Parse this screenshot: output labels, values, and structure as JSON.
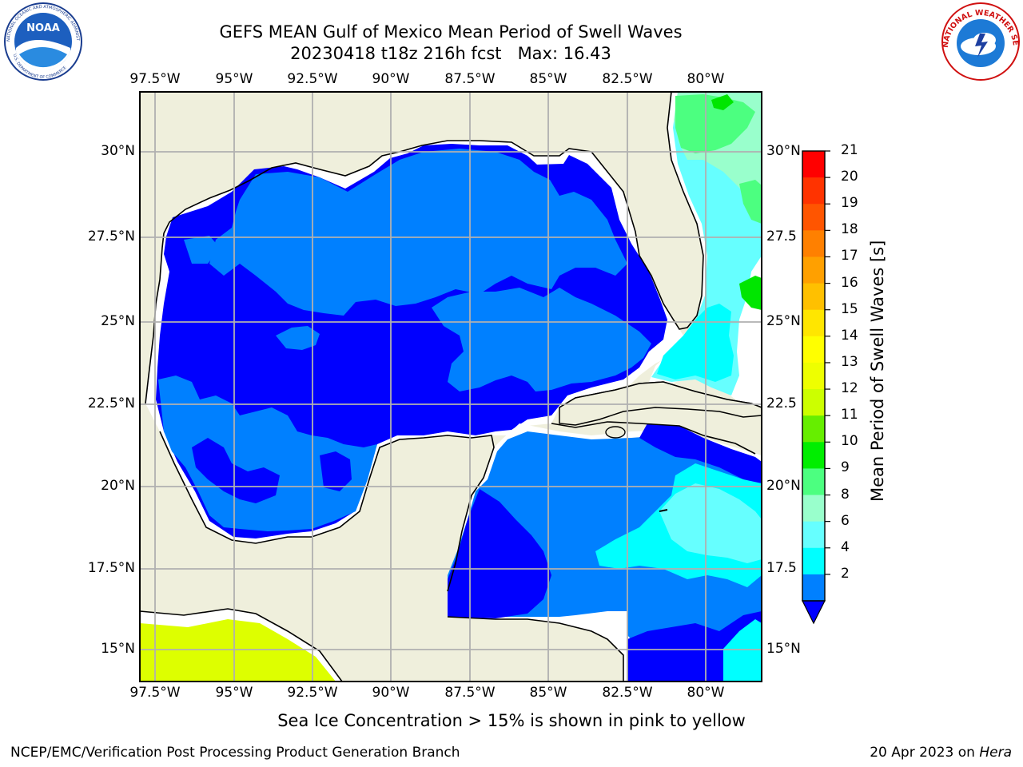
{
  "header": {
    "title_line1": "GEFS MEAN Gulf of Mexico Mean Period of Swell Waves",
    "title_line2": "20230418 t18z 216h fcst   Max: 16.43"
  },
  "logos": {
    "noaa": "NOAA",
    "noaa_ring": "NATIONAL OCEANIC AND ATMOSPHERIC ADMINISTRATION",
    "noaa_ring_bottom": "U.S. DEPARTMENT OF COMMERCE",
    "nws_ring": "NATIONAL WEATHER SERVICE"
  },
  "map": {
    "lon_ticks": [
      "97.5°W",
      "95°W",
      "92.5°W",
      "90°W",
      "87.5°W",
      "85°W",
      "82.5°W",
      "80°W"
    ],
    "lat_ticks": [
      "30°N",
      "27.5°N",
      "25°N",
      "22.5°N",
      "20°N",
      "17.5°N",
      "15°N"
    ],
    "lat_ticks_right": [
      "30°N",
      "27.5",
      "25°N",
      "22.5",
      "20°N",
      "17.5",
      "15°N"
    ],
    "lon_range": [
      -98,
      -78.2
    ],
    "lat_range": [
      14,
      31.8
    ],
    "colors": {
      "land": "#efefdc",
      "level_2": "#0000ff",
      "level_4": "#0080ff",
      "level_6": "#00ffff",
      "level_8": "#66ffff",
      "level_9": "#99ffcc",
      "level_10": "#4cff80",
      "level_11": "#00e600",
      "level_13": "#ddff00",
      "no_data": "#ffffff"
    }
  },
  "colorbar": {
    "label": "Mean Period of Swell Waves [s]",
    "ticks": [
      "21",
      "20",
      "19",
      "18",
      "17",
      "16",
      "15",
      "14",
      "13",
      "12",
      "11",
      "10",
      "9",
      "8",
      "6",
      "4",
      "2"
    ],
    "bin_colors": [
      "#ff0000",
      "#ff3300",
      "#ff5500",
      "#ff8000",
      "#ffa000",
      "#ffc000",
      "#ffe600",
      "#ffff00",
      "#eeff00",
      "#ccff00",
      "#66ee00",
      "#00ee00",
      "#4cff80",
      "#99ffcc",
      "#66ffff",
      "#00ffff",
      "#0080ff"
    ],
    "extend_color": "#0000ff"
  },
  "caption": "Sea Ice Concentration > 15% is shown in pink to yellow",
  "footer": {
    "left": "NCEP/EMC/Verification Post Processing Product Generation Branch",
    "right_date": "20 Apr 2023 on ",
    "right_host": "Hera"
  }
}
